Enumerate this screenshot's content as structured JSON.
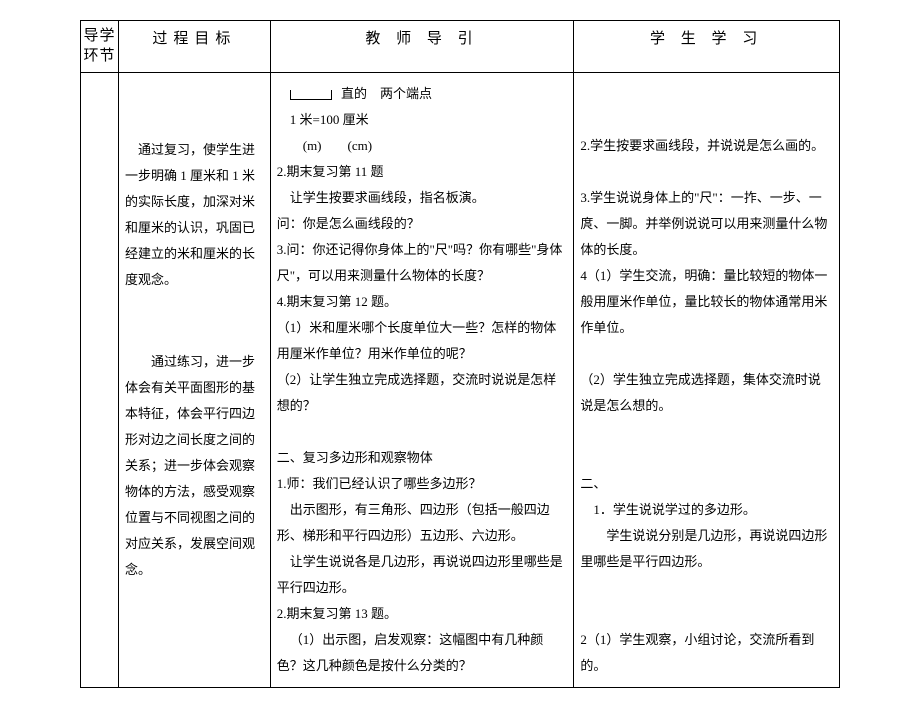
{
  "table": {
    "headers": {
      "col1": "导学环节",
      "col2": "过程目标",
      "col3": "教 师 导 引",
      "col4": "学 生 学 习"
    },
    "body": {
      "col1": "",
      "col2": {
        "p1": "通过复习，使学生进一步明确 1 厘米和 1 米的实际长度，加深对米和厘米的认识，巩固已经建立的米和厘米的长度观念。",
        "p2": "通过练习，进一步体会有关平面图形的基本特征，体会平行四边形对边之间长度之间的关系；进一步体会观察物体的方法，感受观察位置与不同视图之间的对应关系，发展空间观念。"
      },
      "col3": {
        "line1_ruler_label": "直的　两个端点",
        "line2": "1 米=100 厘米",
        "line3": "　(m)　　(cm)",
        "line4": "2.期末复习第 11 题",
        "line5": "让学生按要求画线段，指名板演。",
        "line6": "问：你是怎么画线段的？",
        "line7": "3.问：你还记得你身体上的\"尺\"吗？你有哪些\"身体尺\"，可以用来测量什么物体的长度？",
        "line8": "4.期末复习第 12 题。",
        "line9": "（1）米和厘米哪个长度单位大一些？怎样的物体用厘米作单位？用米作单位的呢？",
        "line10": "（2）让学生独立完成选择题，交流时说说是怎样想的？",
        "line11": "二、复习多边形和观察物体",
        "line12": "1.师：我们已经认识了哪些多边形？",
        "line13": "出示图形，有三角形、四边形（包括一般四边形、梯形和平行四边形）五边形、六边形。",
        "line14": "让学生说说各是几边形，再说说四边形里哪些是平行四边形。",
        "line15": "2.期末复习第 13 题。",
        "line16": "（1）出示图，启发观察：这幅图中有几种颜色？这几种颜色是按什么分类的？"
      },
      "col4": {
        "line1": "2.学生按要求画线段，并说说是怎么画的。",
        "line2": "3.学生说说身体上的\"尺\"：一拃、一步、一庹、一脚。并举例说说可以用来测量什么物体的长度。",
        "line3": "4（1）学生交流，明确：量比较短的物体一般用厘米作单位，量比较长的物体通常用米作单位。",
        "line4": "（2）学生独立完成选择题，集体交流时说说是怎么想的。",
        "line5": "二、",
        "line6": "1．学生说说学过的多边形。",
        "line7": "学生说说分别是几边形，再说说四边形里哪些是平行四边形。",
        "line8": "2（1）学生观察，小组讨论，交流所看到的。"
      }
    }
  },
  "colors": {
    "border": "#000000",
    "text": "#000000",
    "background": "#ffffff"
  },
  "fonts": {
    "body_size": 13,
    "header_size": 15,
    "family": "SimSun"
  }
}
